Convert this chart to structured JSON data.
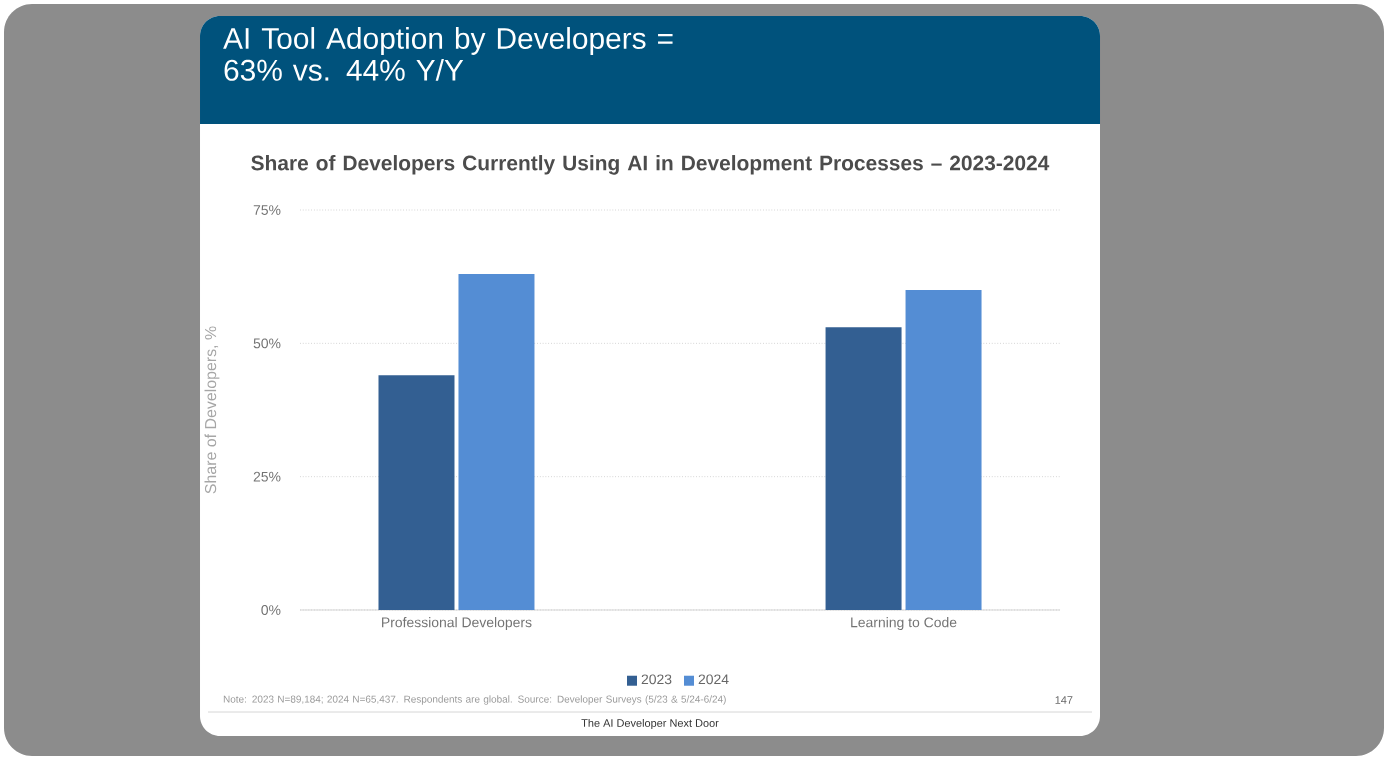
{
  "chart_data": {
    "type": "bar",
    "title": "AI Tool Adoption by Developers = 63% vs. 44% Y/Y",
    "subtitle": "Share of Developers Currently Using AI in Development Processes – 2023-2024",
    "categories": [
      "Professional Developers",
      "Learning to Code"
    ],
    "series": [
      {
        "name": "2023",
        "color": "#335f92",
        "values": [
          44,
          53
        ]
      },
      {
        "name": "2024",
        "color": "#548dd4",
        "values": [
          63,
          60
        ]
      }
    ],
    "ylabel": "Share of Developers, %",
    "ylim": [
      0,
      75
    ],
    "yticks": [
      {
        "value": 0,
        "label": "0%"
      },
      {
        "value": 25,
        "label": "25%"
      },
      {
        "value": 50,
        "label": "50%"
      },
      {
        "value": 75,
        "label": "75%"
      }
    ],
    "grid": "y",
    "legend": "bottom",
    "annotations": [
      "Note: 2023 N=89,184; 2024 N=65,437. Respondents are global. Source: Developer Surveys (5/23 & 5/24-6/24)",
      "The AI Developer Next Door",
      "147"
    ]
  }
}
